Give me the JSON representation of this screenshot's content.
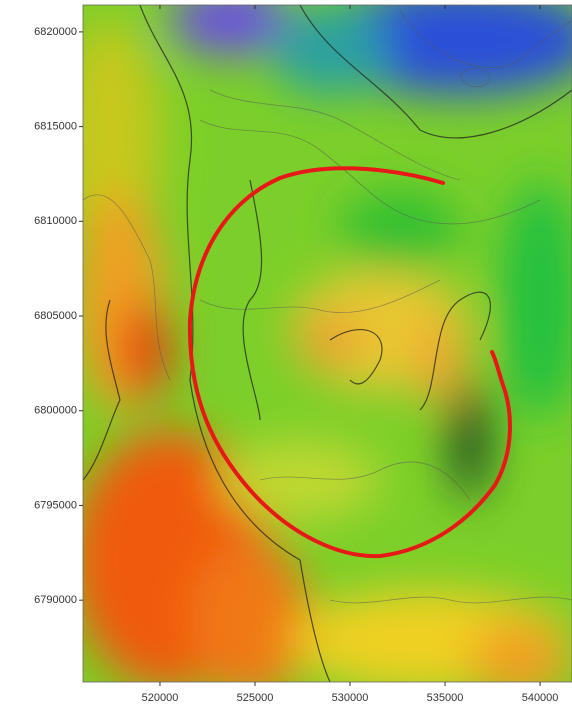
{
  "chart_data": {
    "type": "map",
    "xlim": [
      515950,
      541680
    ],
    "ylim": [
      6785680,
      6821420
    ],
    "xticks": [
      520000,
      525000,
      530000,
      535000,
      540000
    ],
    "yticks": [
      6790000,
      6795000,
      6800000,
      6805000,
      6810000,
      6815000,
      6820000
    ]
  }
}
